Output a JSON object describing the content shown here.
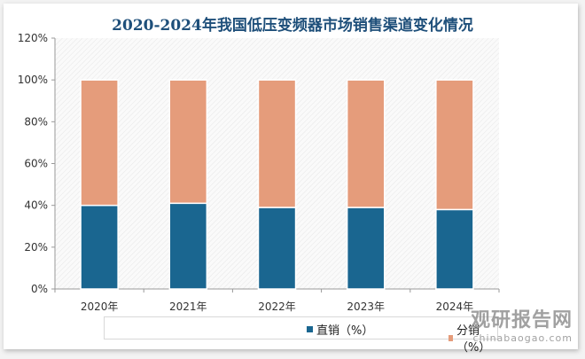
{
  "chart_data": {
    "type": "bar",
    "stacked": true,
    "title": "2020-2024年我国低压变频器市场销售渠道变化情况",
    "categories": [
      "2020年",
      "2021年",
      "2022年",
      "2023年",
      "2024年"
    ],
    "series": [
      {
        "name": "直销（%）",
        "color": "#1a6690",
        "values": [
          40,
          41,
          39,
          39,
          38
        ]
      },
      {
        "name": "分销（%）",
        "color": "#e59c7b",
        "values": [
          60,
          59,
          61,
          61,
          62
        ]
      }
    ],
    "ylim": [
      0,
      120
    ],
    "yticks": [
      "0%",
      "20%",
      "40%",
      "60%",
      "80%",
      "100%",
      "120%"
    ],
    "legend": "bottom",
    "grid": false
  },
  "watermark": {
    "cn": "观研报告网",
    "en": "chinabaogao.com"
  }
}
